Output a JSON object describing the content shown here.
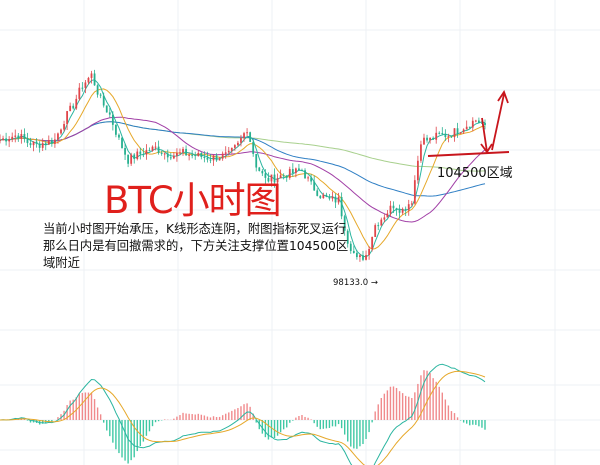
{
  "annotation": {
    "title": "BTC小时图",
    "note_lines": [
      "当前小时图开始承压，K线形态连阴，附图指标死叉运行",
      "那么日内是有回撤需求的，下方关注支撑位置104500区",
      "域附近"
    ],
    "support_label": "104500区域",
    "low_label": "98133.0 →"
  },
  "colors": {
    "up": "#e0454a",
    "down": "#26b08f",
    "annotation": "#c8161d",
    "ma_fast": "#2bb5a0",
    "ma_mid": "#e6a82a",
    "ma_slow": "#a13fa6",
    "ma_long": "#2f7fc4",
    "ma_longest": "#a8d08d"
  },
  "chart_data": {
    "type": "candlestick",
    "title": "",
    "timeframe": "1h",
    "support_level": 104500,
    "marked_low": 98133.0,
    "closes": [
      105228,
      105400,
      105508,
      105100,
      104948,
      105100,
      105228,
      106348,
      107188,
      108300,
      108868,
      107468,
      106628,
      105228,
      104108,
      104388,
      104612,
      104780,
      104500,
      104388,
      104500,
      104388,
      104300,
      104220,
      104300,
      104388,
      104948,
      105900,
      103828,
      102988,
      103100,
      103268,
      103400,
      103548,
      102708,
      102148,
      101868,
      101868,
      99628,
      98508,
      98788,
      100468,
      101028,
      101588,
      101308,
      101868,
      105228,
      105228,
      105508,
      105508,
      105788,
      106068,
      106348,
      106068
    ],
    "indicators": [
      "moving averages",
      "MACD"
    ],
    "grid": true,
    "forecast": "pullback to 104500 then rise"
  }
}
